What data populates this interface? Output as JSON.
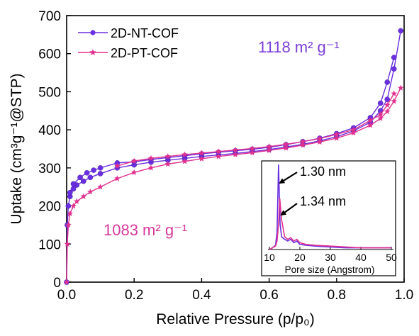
{
  "chart_data": [
    {
      "type": "line",
      "title": "",
      "xlabel": "Relative Pressure (p/p₀)",
      "ylabel": "Uptake (cm³g⁻¹@STP)",
      "xlim": [
        0.0,
        1.0
      ],
      "ylim": [
        0,
        700
      ],
      "xticks": [
        "0.0",
        "0.2",
        "0.4",
        "0.6",
        "0.8",
        "1.0"
      ],
      "yticks": [
        "0",
        "100",
        "200",
        "300",
        "400",
        "500",
        "600",
        "700"
      ],
      "grid": false,
      "legend_position": "top-left",
      "annotations": [
        {
          "text": "1118 m² g⁻¹",
          "color": "#7B3FD6"
        },
        {
          "text": "1083 m² g⁻¹",
          "color": "#D6399A"
        }
      ],
      "series": [
        {
          "name": "2D-NT-COF",
          "color": "#6A2FE0",
          "marker": "circle",
          "adsorption": {
            "x": [
              0.0,
              0.002,
              0.005,
              0.01,
              0.02,
              0.03,
              0.05,
              0.07,
              0.1,
              0.15,
              0.2,
              0.25,
              0.3,
              0.35,
              0.4,
              0.45,
              0.5,
              0.55,
              0.6,
              0.65,
              0.7,
              0.75,
              0.8,
              0.85,
              0.9,
              0.93,
              0.95,
              0.97,
              0.99
            ],
            "y": [
              0,
              150,
              200,
              225,
              245,
              255,
              265,
              275,
              285,
              300,
              308,
              315,
              320,
              325,
              330,
              334,
              338,
              343,
              348,
              355,
              362,
              371,
              382,
              397,
              420,
              450,
              480,
              560,
              660
            ]
          },
          "desorption": {
            "x": [
              0.97,
              0.95,
              0.93,
              0.9,
              0.85,
              0.8,
              0.75,
              0.7,
              0.65,
              0.6,
              0.55,
              0.5,
              0.45,
              0.4,
              0.35,
              0.3,
              0.25,
              0.2,
              0.15,
              0.1,
              0.08,
              0.06,
              0.04,
              0.02,
              0.01
            ],
            "y": [
              590,
              525,
              470,
              432,
              405,
              390,
              378,
              369,
              361,
              354,
              349,
              345,
              341,
              337,
              332,
              327,
              322,
              316,
              313,
              300,
              294,
              287,
              275,
              258,
              235
            ]
          }
        },
        {
          "name": "2D-PT-COF",
          "color": "#E0308F",
          "marker": "star",
          "adsorption": {
            "x": [
              0.0,
              0.002,
              0.005,
              0.01,
              0.02,
              0.03,
              0.05,
              0.07,
              0.1,
              0.15,
              0.2,
              0.25,
              0.3,
              0.35,
              0.4,
              0.45,
              0.5,
              0.55,
              0.6,
              0.65,
              0.7,
              0.75,
              0.8,
              0.85,
              0.9,
              0.93,
              0.95,
              0.97,
              0.99
            ],
            "y": [
              0,
              100,
              150,
              180,
              200,
              212,
              225,
              237,
              250,
              272,
              288,
              300,
              310,
              317,
              324,
              330,
              335,
              340,
              346,
              352,
              360,
              368,
              378,
              392,
              412,
              430,
              448,
              475,
              510
            ]
          },
          "desorption": {
            "x": [
              0.97,
              0.95,
              0.93,
              0.9,
              0.85,
              0.8,
              0.75,
              0.7,
              0.65,
              0.6,
              0.55,
              0.5,
              0.45,
              0.4,
              0.35,
              0.3,
              0.25,
              0.2,
              0.15
            ],
            "y": [
              495,
              465,
              440,
              425,
              400,
              388,
              377,
              369,
              362,
              356,
              351,
              347,
              343,
              339,
              335,
              330,
              325,
              318,
              305
            ]
          }
        }
      ]
    },
    {
      "type": "line",
      "title": "",
      "xlabel": "Pore size (Angstrom)",
      "ylabel": "",
      "xlim": [
        10,
        50
      ],
      "xticks": [
        "10",
        "20",
        "30",
        "40",
        "50"
      ],
      "annotations": [
        {
          "text": "1.30 nm",
          "color": "#000000"
        },
        {
          "text": "1.34 nm",
          "color": "#000000"
        }
      ],
      "series": [
        {
          "name": "",
          "color": "#6A2FE0",
          "x": [
            10,
            11,
            12,
            12.5,
            13,
            13.5,
            14,
            15,
            16,
            17,
            18,
            19,
            20,
            22,
            25,
            30,
            35,
            40,
            45,
            50
          ],
          "y": [
            0.0,
            0.02,
            0.05,
            0.2,
            1.0,
            0.3,
            0.15,
            0.12,
            0.1,
            0.12,
            0.08,
            0.1,
            0.06,
            0.05,
            0.04,
            0.03,
            0.02,
            0.02,
            0.02,
            0.02
          ]
        },
        {
          "name": "",
          "color": "#E0308F",
          "x": [
            10,
            11,
            12,
            12.5,
            13,
            13.4,
            14,
            15,
            16,
            17,
            18,
            19,
            20,
            22,
            25,
            30,
            35,
            40,
            45,
            50
          ],
          "y": [
            0.0,
            0.02,
            0.04,
            0.1,
            0.3,
            0.6,
            0.35,
            0.15,
            0.12,
            0.14,
            0.1,
            0.12,
            0.08,
            0.06,
            0.05,
            0.04,
            0.03,
            0.02,
            0.02,
            0.02
          ]
        }
      ]
    }
  ]
}
